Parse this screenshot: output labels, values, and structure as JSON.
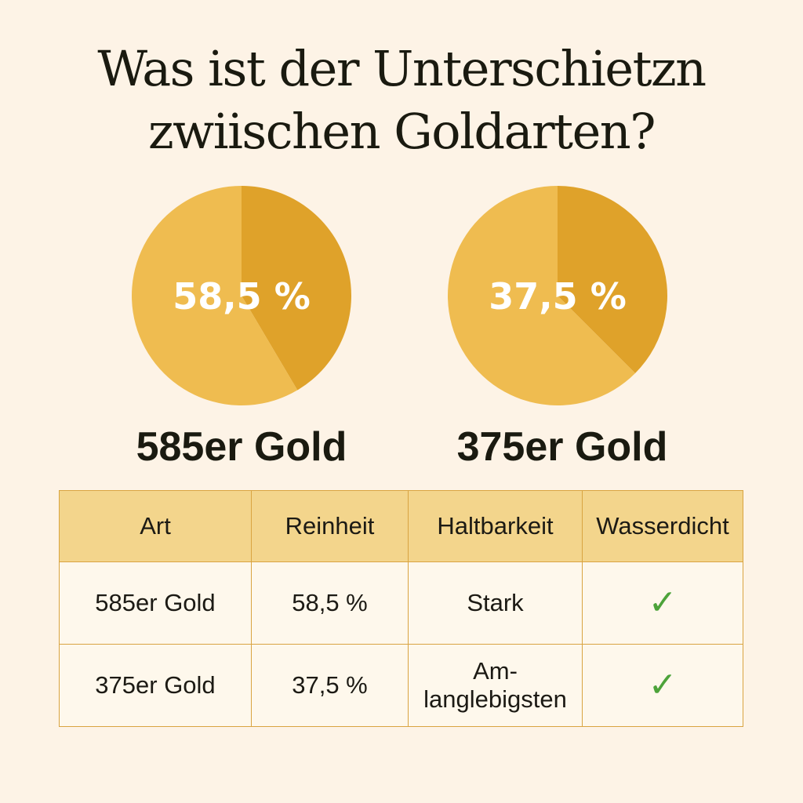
{
  "title": {
    "line1": "Was ist der Unterschietzn",
    "line2": "zwiischen Goldarten?"
  },
  "colors": {
    "background": "#FDF3E6",
    "gold_light": "#EFBC50",
    "gold_dark": "#DFA22A",
    "table_header": "#F3D58C",
    "table_border": "#D9A441",
    "check": "#4DA33A"
  },
  "chart_data": [
    {
      "type": "pie",
      "center_label": "58,5 %",
      "label": "585er Gold",
      "slices": [
        {
          "value": 41.5,
          "color": "#DFA22A"
        },
        {
          "value": 58.5,
          "color": "#EFBC50"
        }
      ]
    },
    {
      "type": "pie",
      "center_label": "37,5 %",
      "label": "375er Gold",
      "slices": [
        {
          "value": 37.5,
          "color": "#DFA22A"
        },
        {
          "value": 62.5,
          "color": "#EFBC50"
        }
      ]
    }
  ],
  "table": {
    "headers": [
      "Art",
      "Reinheit",
      "Haltbarkeit",
      "Wasserdicht"
    ],
    "rows": [
      {
        "art": "585er Gold",
        "reinheit": "58,5 %",
        "haltbarkeit": "Stark",
        "wasserdicht": "✓",
        "wasserdicht_icon": "check-icon"
      },
      {
        "art": "375er Gold",
        "reinheit": "37,5 %",
        "haltbarkeit": "Am-\nlanglebigsten",
        "wasserdicht": "✓",
        "wasserdicht_icon": "check-icon"
      }
    ]
  }
}
